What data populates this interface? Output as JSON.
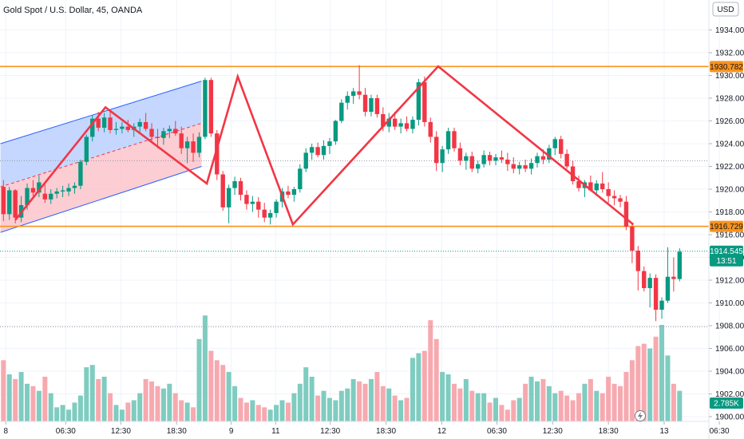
{
  "chart_data": {
    "type": "candlestick",
    "title": "Gold Spot / U.S. Dollar, 45, OANDA",
    "currency": "USD",
    "y_axis": {
      "min": 1900,
      "max": 1935,
      "ticks": [
        "1900.000",
        "1902.000",
        "1904.000",
        "1906.000",
        "1908.000",
        "1910.000",
        "1912.000",
        "1914.000",
        "1916.000",
        "1918.000",
        "1920.000",
        "1922.000",
        "1924.000",
        "1926.000",
        "1928.000",
        "1930.000",
        "1932.000",
        "1934.000"
      ]
    },
    "x_axis": {
      "labels": [
        "8",
        "06:30",
        "12:30",
        "18:30",
        "9",
        "11",
        "12:30",
        "18:30",
        "12",
        "06:30",
        "12:30",
        "18:30",
        "13",
        "06:30"
      ],
      "label_index": [
        0.4,
        10.5,
        19.8,
        29.2,
        38.4,
        45.9,
        55.1,
        64.5,
        73.9,
        83.2,
        92.6,
        102.0,
        111.4,
        120.7
      ]
    },
    "candles": [
      [
        1920.2,
        1920.8,
        1917.2,
        1917.8
      ],
      [
        1917.8,
        1920.2,
        1917.3,
        1919.9
      ],
      [
        1919.9,
        1920.0,
        1917.0,
        1917.5
      ],
      [
        1917.5,
        1919.4,
        1917.1,
        1918.6
      ],
      [
        1918.6,
        1920.5,
        1918.2,
        1920.1
      ],
      [
        1920.1,
        1920.8,
        1919.4,
        1919.7
      ],
      [
        1919.7,
        1921.2,
        1919.3,
        1920.6
      ],
      [
        1919.6,
        1920.4,
        1918.8,
        1919.1
      ],
      [
        1919.1,
        1920.0,
        1918.7,
        1919.6
      ],
      [
        1919.6,
        1920.1,
        1919.2,
        1919.8
      ],
      [
        1919.8,
        1920.3,
        1919.3,
        1919.9
      ],
      [
        1919.8,
        1920.5,
        1919.4,
        1920.1
      ],
      [
        1920.1,
        1920.6,
        1919.6,
        1920.3
      ],
      [
        1920.3,
        1922.6,
        1920.0,
        1922.4
      ],
      [
        1922.4,
        1924.8,
        1922.1,
        1924.6
      ],
      [
        1924.6,
        1926.5,
        1924.2,
        1926.2
      ],
      [
        1926.2,
        1926.8,
        1925.1,
        1925.4
      ],
      [
        1925.4,
        1926.7,
        1925.0,
        1926.3
      ],
      [
        1926.3,
        1926.9,
        1924.9,
        1925.2
      ],
      [
        1925.2,
        1925.9,
        1924.8,
        1925.3
      ],
      [
        1925.3,
        1925.9,
        1924.9,
        1925.5
      ],
      [
        1925.5,
        1926.1,
        1925.0,
        1925.2
      ],
      [
        1925.2,
        1925.8,
        1924.6,
        1925.5
      ],
      [
        1925.5,
        1926.2,
        1924.9,
        1925.9
      ],
      [
        1925.9,
        1926.7,
        1925.1,
        1925.3
      ],
      [
        1925.3,
        1925.8,
        1924.2,
        1924.6
      ],
      [
        1924.6,
        1925.3,
        1923.6,
        1924.5
      ],
      [
        1924.5,
        1925.4,
        1923.9,
        1925.1
      ],
      [
        1925.1,
        1925.6,
        1924.5,
        1925.3
      ],
      [
        1925.3,
        1926.0,
        1924.7,
        1924.9
      ],
      [
        1924.9,
        1925.5,
        1923.1,
        1923.6
      ],
      [
        1923.6,
        1924.6,
        1922.3,
        1924.2
      ],
      [
        1924.2,
        1924.9,
        1922.4,
        1923.2
      ],
      [
        1923.2,
        1925.0,
        1922.8,
        1924.6
      ],
      [
        1924.6,
        1929.8,
        1924.4,
        1929.6
      ],
      [
        1929.6,
        1929.8,
        1924.6,
        1924.9
      ],
      [
        1924.9,
        1925.2,
        1920.8,
        1921.3
      ],
      [
        1921.3,
        1921.6,
        1918.1,
        1918.4
      ],
      [
        1918.4,
        1920.4,
        1917.0,
        1920.1
      ],
      [
        1920.1,
        1921.1,
        1919.5,
        1920.7
      ],
      [
        1920.7,
        1921.0,
        1919.0,
        1919.5
      ],
      [
        1919.5,
        1919.9,
        1918.2,
        1918.7
      ],
      [
        1918.7,
        1919.4,
        1918.0,
        1918.9
      ],
      [
        1918.9,
        1919.3,
        1917.5,
        1918.2
      ],
      [
        1918.2,
        1918.8,
        1917.1,
        1917.5
      ],
      [
        1917.5,
        1918.2,
        1916.9,
        1917.9
      ],
      [
        1917.9,
        1919.1,
        1917.5,
        1918.9
      ],
      [
        1918.9,
        1920.1,
        1918.4,
        1919.8
      ],
      [
        1919.8,
        1920.3,
        1919.2,
        1919.5
      ],
      [
        1919.5,
        1920.2,
        1918.9,
        1920.0
      ],
      [
        1920.0,
        1922.2,
        1919.7,
        1921.8
      ],
      [
        1921.8,
        1923.6,
        1921.5,
        1923.2
      ],
      [
        1923.2,
        1924.0,
        1922.6,
        1923.7
      ],
      [
        1923.7,
        1924.1,
        1922.8,
        1923.0
      ],
      [
        1923.0,
        1924.3,
        1922.6,
        1923.8
      ],
      [
        1923.8,
        1924.5,
        1923.1,
        1924.2
      ],
      [
        1924.2,
        1926.1,
        1923.9,
        1926.0
      ],
      [
        1926.0,
        1927.9,
        1925.8,
        1927.6
      ],
      [
        1927.6,
        1928.6,
        1927.0,
        1928.2
      ],
      [
        1928.2,
        1928.9,
        1927.5,
        1928.6
      ],
      [
        1928.6,
        1930.9,
        1927.9,
        1928.3
      ],
      [
        1928.3,
        1928.9,
        1926.4,
        1926.8
      ],
      [
        1926.8,
        1928.3,
        1926.4,
        1928.0
      ],
      [
        1928.0,
        1928.3,
        1926.3,
        1926.6
      ],
      [
        1926.6,
        1927.2,
        1925.1,
        1925.5
      ],
      [
        1925.5,
        1926.7,
        1925.0,
        1926.2
      ],
      [
        1926.2,
        1926.8,
        1925.2,
        1925.5
      ],
      [
        1925.5,
        1926.2,
        1924.9,
        1925.8
      ],
      [
        1925.8,
        1926.4,
        1925.1,
        1925.3
      ],
      [
        1925.3,
        1926.4,
        1924.9,
        1926.1
      ],
      [
        1926.1,
        1929.7,
        1925.6,
        1929.4
      ],
      [
        1929.4,
        1929.9,
        1925.5,
        1925.9
      ],
      [
        1925.9,
        1926.3,
        1924.1,
        1924.6
      ],
      [
        1924.6,
        1925.1,
        1921.6,
        1922.3
      ],
      [
        1922.3,
        1923.8,
        1921.5,
        1923.5
      ],
      [
        1923.5,
        1925.4,
        1923.1,
        1925.1
      ],
      [
        1925.1,
        1925.4,
        1923.3,
        1923.6
      ],
      [
        1923.6,
        1924.1,
        1922.1,
        1922.5
      ],
      [
        1922.5,
        1923.2,
        1921.7,
        1922.9
      ],
      [
        1922.9,
        1923.3,
        1921.5,
        1921.8
      ],
      [
        1921.8,
        1922.5,
        1921.4,
        1922.2
      ],
      [
        1922.2,
        1923.4,
        1921.9,
        1923.0
      ],
      [
        1923.0,
        1923.3,
        1922.1,
        1922.5
      ],
      [
        1922.5,
        1923.1,
        1922.1,
        1922.8
      ],
      [
        1922.8,
        1923.4,
        1922.3,
        1922.6
      ],
      [
        1922.6,
        1923.2,
        1921.6,
        1922.2
      ],
      [
        1922.2,
        1922.8,
        1921.4,
        1921.8
      ],
      [
        1921.8,
        1922.4,
        1921.3,
        1922.1
      ],
      [
        1922.1,
        1922.6,
        1921.5,
        1921.8
      ],
      [
        1921.8,
        1922.7,
        1921.3,
        1922.3
      ],
      [
        1922.3,
        1923.2,
        1921.9,
        1922.9
      ],
      [
        1922.9,
        1923.5,
        1922.2,
        1922.6
      ],
      [
        1922.6,
        1923.9,
        1922.3,
        1923.6
      ],
      [
        1923.6,
        1924.6,
        1923.0,
        1924.4
      ],
      [
        1924.4,
        1924.7,
        1922.7,
        1923.1
      ],
      [
        1923.1,
        1923.5,
        1921.8,
        1922.0
      ],
      [
        1922.0,
        1922.5,
        1920.4,
        1920.7
      ],
      [
        1920.7,
        1921.2,
        1919.8,
        1920.1
      ],
      [
        1920.1,
        1920.8,
        1919.3,
        1920.6
      ],
      [
        1920.6,
        1921.2,
        1919.8,
        1919.9
      ],
      [
        1919.9,
        1920.8,
        1919.4,
        1920.5
      ],
      [
        1920.5,
        1921.5,
        1919.7,
        1920.0
      ],
      [
        1920.0,
        1920.6,
        1918.8,
        1919.4
      ],
      [
        1919.4,
        1919.9,
        1918.6,
        1919.2
      ],
      [
        1919.2,
        1919.5,
        1918.4,
        1918.9
      ],
      [
        1918.9,
        1919.4,
        1916.4,
        1916.7
      ],
      [
        1916.7,
        1917.0,
        1913.5,
        1914.6
      ],
      [
        1914.6,
        1915.0,
        1911.1,
        1912.8
      ],
      [
        1912.8,
        1913.2,
        1911.0,
        1911.3
      ],
      [
        1911.3,
        1912.6,
        1909.6,
        1912.2
      ],
      [
        1912.2,
        1912.5,
        1908.4,
        1909.4
      ],
      [
        1909.4,
        1910.5,
        1908.6,
        1910.2
      ],
      [
        1910.2,
        1914.9,
        1910.0,
        1912.3
      ],
      [
        1912.3,
        1914.0,
        1911.0,
        1912.1
      ],
      [
        1912.1,
        1914.8,
        1911.9,
        1914.5
      ]
    ],
    "volume_units": "K",
    "volumes": [
      2.6,
      2.0,
      1.8,
      2.1,
      1.6,
      1.5,
      1.3,
      1.9,
      1.2,
      0.6,
      0.7,
      0.5,
      0.8,
      1.1,
      2.3,
      2.4,
      1.8,
      1.9,
      1.2,
      0.7,
      0.5,
      0.8,
      0.9,
      1.2,
      1.8,
      1.7,
      1.5,
      1.4,
      1.6,
      1.2,
      0.9,
      0.8,
      0.6,
      3.5,
      4.5,
      3.0,
      2.6,
      2.4,
      2.1,
      1.5,
      1.0,
      0.8,
      0.9,
      0.7,
      0.6,
      0.5,
      0.7,
      0.9,
      0.8,
      1.2,
      1.6,
      2.3,
      1.9,
      1.1,
      1.3,
      1.0,
      0.9,
      1.3,
      1.4,
      1.8,
      1.7,
      1.6,
      1.8,
      2.1,
      1.5,
      1.4,
      1.1,
      0.9,
      1.0,
      2.7,
      2.9,
      3.0,
      4.3,
      3.5,
      2.1,
      2.0,
      1.6,
      1.4,
      1.8,
      1.3,
      1.2,
      1.2,
      0.8,
      1.0,
      0.7,
      0.5,
      0.9,
      1.0,
      1.6,
      1.9,
      1.7,
      1.8,
      1.5,
      1.2,
      1.3,
      1.1,
      0.9,
      1.2,
      1.6,
      1.8,
      1.3,
      1.2,
      1.9,
      1.6,
      1.5,
      2.1,
      2.6,
      3.2,
      3.3,
      3.1,
      3.6,
      4.1,
      2.8,
      1.6,
      1.3
    ],
    "horizontal_lines": [
      {
        "price": 1930.782,
        "label": "1930.782",
        "color": "#f7931e"
      },
      {
        "price": 1916.729,
        "label": "1916.729",
        "color": "#f7931e"
      }
    ],
    "dotted_lines": [
      1922.5,
      1914.545,
      1907.9
    ],
    "last_price": {
      "value": 1914.545,
      "label": "1914.545",
      "countdown": "13:51",
      "color": "#089981"
    },
    "volume_badge": "2.785K",
    "channel": {
      "upper": [
        [
          -0.5,
          1924.0
        ],
        [
          33.4,
          1929.5
        ]
      ],
      "middle": [
        [
          -0.5,
          1920.2
        ],
        [
          33.4,
          1925.8
        ]
      ],
      "lower": [
        [
          -0.5,
          1916.2
        ],
        [
          33.4,
          1922.0
        ]
      ]
    },
    "zigzag": [
      [
        2.0,
        1917.3
      ],
      [
        17.2,
        1927.2
      ],
      [
        34.3,
        1920.5
      ],
      [
        39.5,
        1929.9
      ],
      [
        48.8,
        1916.9
      ],
      [
        73.3,
        1930.8
      ],
      [
        106.2,
        1916.9
      ]
    ],
    "colors": {
      "up": "#089981",
      "down": "#f23645",
      "vol_up": "#7fccc0",
      "vol_down": "#f7a9b0",
      "zigzag": "#f23645",
      "channel_line": "#2962ff",
      "channel_upper_fill": "#bbd0ff",
      "channel_lower_fill": "#fbc4cb"
    }
  }
}
